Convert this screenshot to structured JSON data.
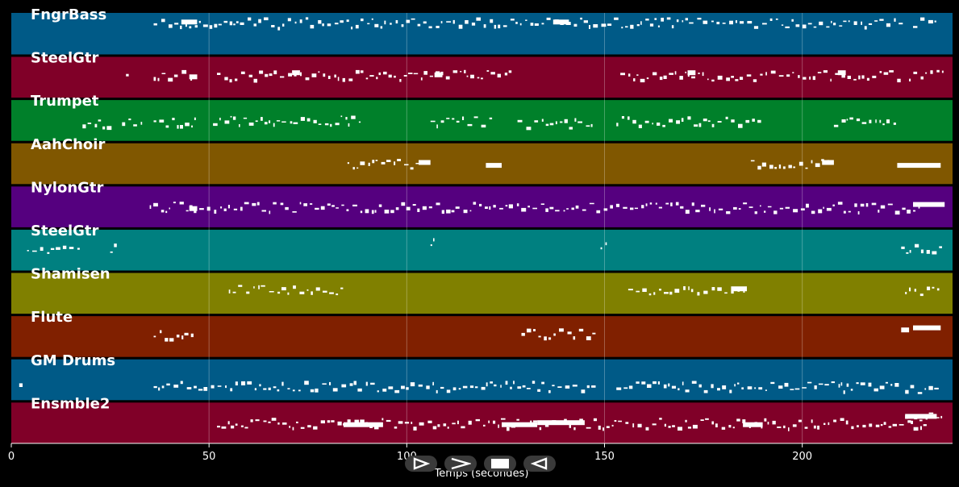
{
  "chart_data": {
    "type": "piano-roll",
    "title": "",
    "xlabel": "Temps (secondes)",
    "ylabel": "",
    "xlim": [
      0,
      238
    ],
    "xticks": [
      0,
      50,
      100,
      150,
      200
    ],
    "grid": true,
    "tracks": [
      {
        "name": "FngrBass",
        "color": "#005a87",
        "segments": [
          [
            36,
            226,
            0.22
          ],
          [
            228,
            235,
            0.22
          ]
        ],
        "blocks": [
          [
            43,
            47,
            0.22
          ],
          [
            137,
            141,
            0.22
          ]
        ]
      },
      {
        "name": "SteelGtr",
        "color": "#800028",
        "segments": [
          [
            20,
            20.5,
            0.45
          ],
          [
            29,
            30,
            0.45
          ],
          [
            36,
            46,
            0.45
          ],
          [
            52,
            128,
            0.45
          ],
          [
            154,
            225,
            0.45
          ],
          [
            227,
            236,
            0.45
          ]
        ],
        "blocks": [
          [
            45,
            47,
            0.5
          ],
          [
            71,
            73,
            0.4
          ],
          [
            107,
            109,
            0.45
          ],
          [
            171,
            173,
            0.4
          ],
          [
            209,
            211,
            0.4
          ]
        ]
      },
      {
        "name": "Trumpet",
        "color": "#00802a",
        "segments": [
          [
            18,
            26,
            0.55
          ],
          [
            28,
            34,
            0.55
          ],
          [
            36,
            47,
            0.52
          ],
          [
            51,
            89,
            0.5
          ],
          [
            106,
            123,
            0.52
          ],
          [
            128,
            148,
            0.55
          ],
          [
            153,
            190,
            0.52
          ],
          [
            208,
            225,
            0.52
          ]
        ],
        "blocks": []
      },
      {
        "name": "AahChoir",
        "color": "#805700",
        "segments": [
          [
            85,
            106,
            0.5
          ],
          [
            187,
            208,
            0.5
          ]
        ],
        "blocks": [
          [
            103,
            106,
            0.48
          ],
          [
            120,
            124,
            0.55
          ],
          [
            205,
            208,
            0.48
          ],
          [
            224,
            235,
            0.55
          ]
        ]
      },
      {
        "name": "NylonGtr",
        "color": "#55007f",
        "segments": [
          [
            35,
            230,
            0.5
          ]
        ],
        "blocks": [
          [
            45,
            47,
            0.55
          ],
          [
            228,
            236,
            0.45
          ]
        ]
      },
      {
        "name": "SteelGtr",
        "color": "#008080",
        "segments": [
          [
            4,
            18,
            0.45
          ],
          [
            25,
            28,
            0.45
          ],
          [
            35,
            36,
            0.5
          ],
          [
            45.5,
            46,
            0.4
          ],
          [
            106,
            107,
            0.3
          ],
          [
            149,
            152,
            0.4
          ],
          [
            193,
            194,
            0.3
          ],
          [
            225,
            236,
            0.45
          ]
        ],
        "blocks": []
      },
      {
        "name": "Shamisen",
        "color": "#808000",
        "segments": [
          [
            55,
            84,
            0.4
          ],
          [
            156,
            186,
            0.4
          ],
          [
            226,
            235,
            0.45
          ]
        ],
        "blocks": [
          [
            182,
            186,
            0.4
          ]
        ]
      },
      {
        "name": "Flute",
        "color": "#802000",
        "segments": [
          [
            36,
            47,
            0.45
          ],
          [
            129,
            148,
            0.42
          ]
        ],
        "blocks": [
          [
            225,
            227,
            0.35
          ],
          [
            228,
            235,
            0.3
          ]
        ]
      },
      {
        "name": "GM Drums",
        "color": "#005a87",
        "segments": [
          [
            2,
            4,
            0.65
          ],
          [
            36,
            148,
            0.65
          ],
          [
            153,
            225,
            0.65
          ],
          [
            226,
            235,
            0.7
          ]
        ],
        "blocks": []
      },
      {
        "name": "Ensmble2",
        "color": "#800028",
        "segments": [
          [
            52,
            232,
            0.5
          ],
          [
            226,
            236,
            0.35
          ]
        ],
        "blocks": [
          [
            84,
            94,
            0.55
          ],
          [
            124,
            133,
            0.55
          ],
          [
            133,
            145,
            0.5
          ],
          [
            185,
            190,
            0.55
          ],
          [
            226,
            234,
            0.35
          ]
        ]
      }
    ]
  },
  "controls": [
    {
      "name": "play-button",
      "icon": "play-outline-icon"
    },
    {
      "name": "forward-button",
      "icon": "chevron-right-icon"
    },
    {
      "name": "stop-button",
      "icon": "stop-icon"
    },
    {
      "name": "rewind-button",
      "icon": "triangle-left-icon"
    }
  ]
}
